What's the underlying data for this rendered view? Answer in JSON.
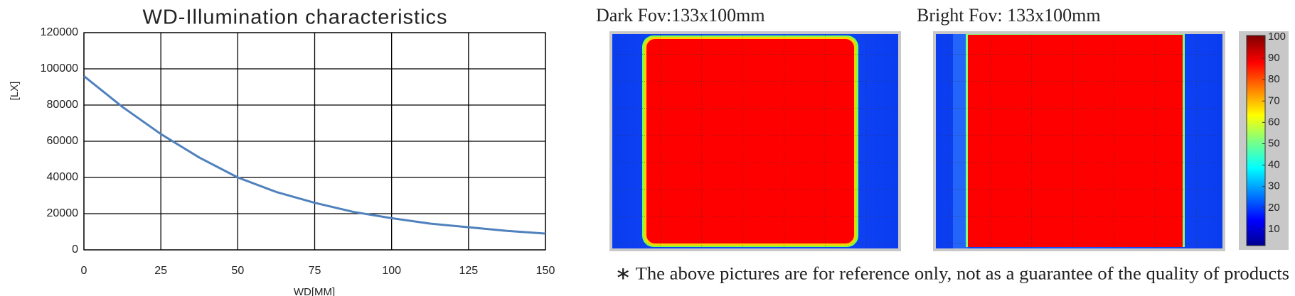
{
  "chart_data": {
    "type": "line",
    "title": "WD-Illumination characteristics",
    "x_label": "WD[MM]",
    "y_label": "[LX]",
    "x": [
      0,
      12.5,
      25,
      37.5,
      50,
      62.5,
      75,
      87.5,
      100,
      112.5,
      125,
      137.5,
      150
    ],
    "values": [
      96000,
      79000,
      64000,
      51000,
      40000,
      32000,
      26000,
      21000,
      17500,
      14500,
      12500,
      10500,
      9000
    ],
    "color": "#4f81bd",
    "xlim": [
      0,
      150
    ],
    "xticks": [
      0,
      25,
      50,
      75,
      100,
      125,
      150
    ],
    "ylim": [
      0,
      120000
    ],
    "yticks": [
      0,
      20000,
      40000,
      60000,
      80000,
      100000,
      120000
    ],
    "grid": true
  },
  "panels": [
    {
      "title": "Dark Fov:133x100mm"
    },
    {
      "title": "Bright Fov: 133x100mm"
    }
  ],
  "colorbar": {
    "lim": [
      0,
      100
    ],
    "ticks": [
      10,
      20,
      30,
      40,
      50,
      60,
      70,
      80,
      90,
      100
    ]
  },
  "note": "∗ The above pictures are for reference only, not as a guarantee of the quality of products"
}
